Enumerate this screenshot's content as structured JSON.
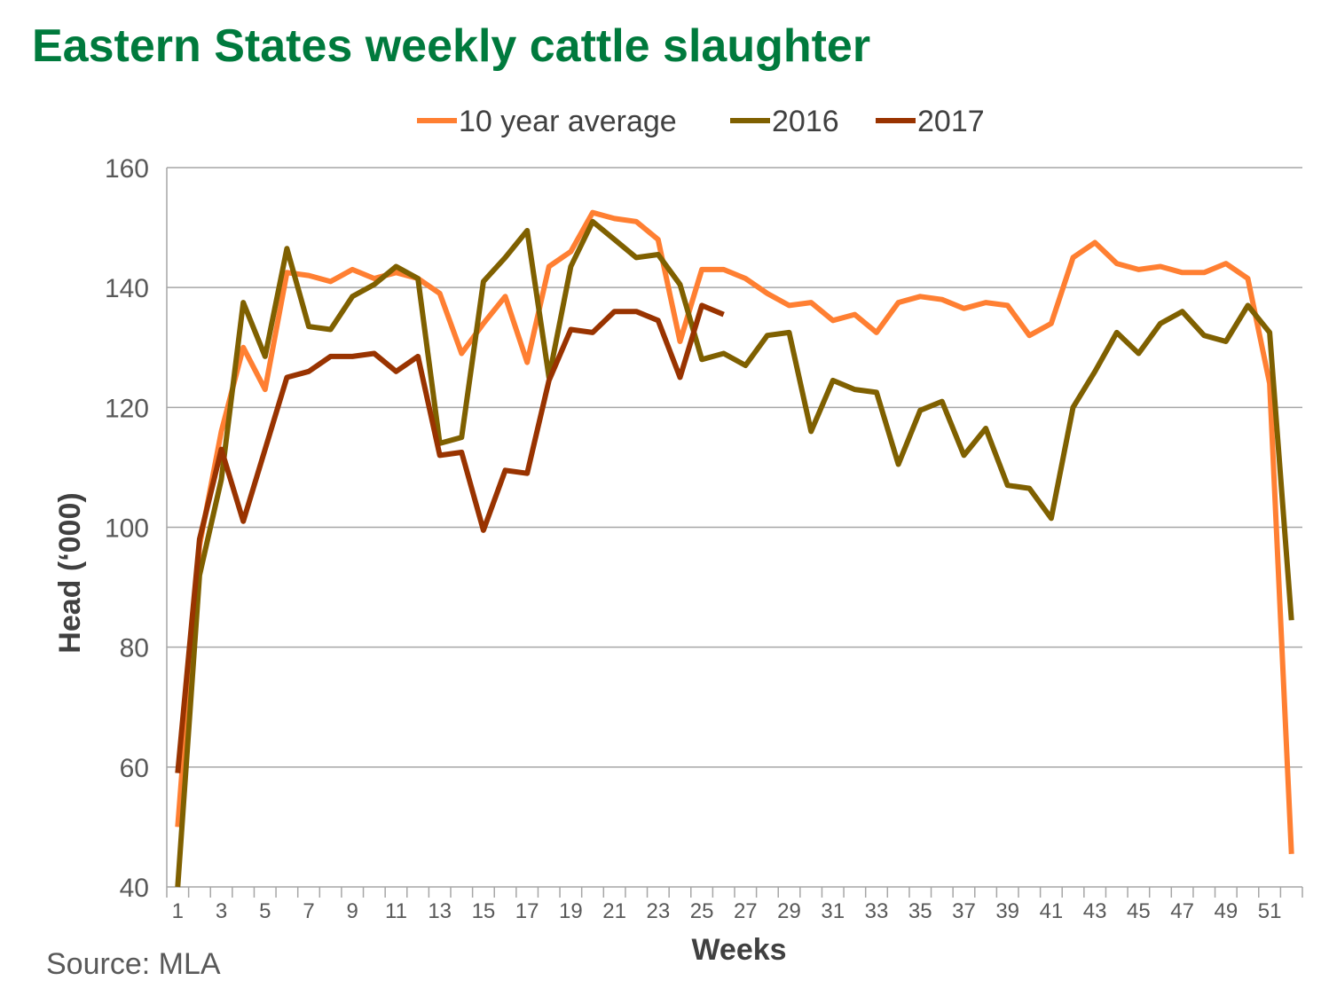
{
  "title": "Eastern States weekly cattle slaughter",
  "source": "Source: MLA",
  "chart_data": {
    "type": "line",
    "title": "Eastern States weekly cattle slaughter",
    "xlabel": "Weeks",
    "ylabel": "Head (‘000)",
    "ylim": [
      40,
      160
    ],
    "yticks": [
      40,
      60,
      80,
      100,
      120,
      140,
      160
    ],
    "xlim": [
      1,
      52
    ],
    "xticks": [
      1,
      3,
      5,
      7,
      9,
      11,
      13,
      15,
      17,
      19,
      21,
      23,
      25,
      27,
      29,
      31,
      33,
      35,
      37,
      39,
      41,
      43,
      45,
      47,
      49,
      51
    ],
    "grid": "horizontal",
    "legend": "top",
    "series": [
      {
        "name": "10 year average",
        "color": "#ff7f32",
        "x": [
          1,
          2,
          3,
          4,
          5,
          6,
          7,
          8,
          9,
          10,
          11,
          12,
          13,
          14,
          15,
          16,
          17,
          18,
          19,
          20,
          21,
          22,
          23,
          24,
          25,
          26,
          27,
          28,
          29,
          30,
          31,
          32,
          33,
          34,
          35,
          36,
          37,
          38,
          39,
          40,
          41,
          42,
          43,
          44,
          45,
          46,
          47,
          48,
          49,
          50,
          51,
          52
        ],
        "values": [
          50,
          97,
          116,
          130,
          123,
          142.5,
          142,
          141,
          143,
          141.5,
          142.5,
          141.5,
          139,
          129,
          134,
          138.5,
          127.5,
          143.5,
          146,
          152.5,
          151.5,
          151,
          148,
          131,
          143,
          143,
          141.5,
          139,
          137,
          137.5,
          134.5,
          135.5,
          132.5,
          137.5,
          138.5,
          138,
          136.5,
          137.5,
          137,
          132,
          134,
          145,
          147.5,
          144,
          143,
          143.5,
          142.5,
          142.5,
          144,
          141.5,
          124,
          45.5
        ]
      },
      {
        "name": "2016",
        "color": "#7f6000",
        "x": [
          1,
          2,
          3,
          4,
          5,
          6,
          7,
          8,
          9,
          10,
          11,
          12,
          13,
          14,
          15,
          16,
          17,
          18,
          19,
          20,
          21,
          22,
          23,
          24,
          25,
          26,
          27,
          28,
          29,
          30,
          31,
          32,
          33,
          34,
          35,
          36,
          37,
          38,
          39,
          40,
          41,
          42,
          43,
          44,
          45,
          46,
          47,
          48,
          49,
          50,
          51,
          52
        ],
        "values": [
          40,
          92,
          108,
          137.5,
          128.5,
          146.5,
          133.5,
          133,
          138.5,
          140.5,
          143.5,
          141.5,
          114,
          115,
          141,
          145,
          149.5,
          125,
          143.5,
          151,
          148,
          145,
          145.5,
          140.5,
          128,
          129,
          127,
          132,
          132.5,
          116,
          124.5,
          123,
          122.5,
          110.5,
          119.5,
          121,
          112,
          116.5,
          107,
          106.5,
          101.5,
          120,
          126,
          132.5,
          129,
          134,
          136,
          132,
          131,
          137,
          132.5,
          84.5
        ]
      },
      {
        "name": "2017",
        "color": "#993300",
        "x": [
          1,
          2,
          3,
          4,
          5,
          6,
          7,
          8,
          9,
          10,
          11,
          12,
          13,
          14,
          15,
          16,
          17,
          18,
          19,
          20,
          21,
          22,
          23,
          24,
          25,
          26
        ],
        "values": [
          59,
          98,
          113,
          101,
          113,
          125,
          126,
          128.5,
          128.5,
          129,
          126,
          128.5,
          112,
          112.5,
          99.5,
          109.5,
          109,
          124.5,
          133,
          132.5,
          136,
          136,
          134.5,
          125,
          137,
          135.5
        ]
      }
    ]
  }
}
